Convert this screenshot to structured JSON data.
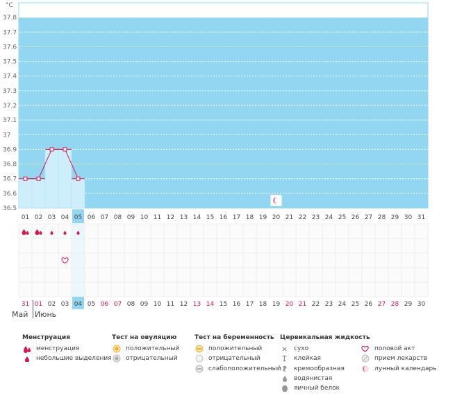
{
  "chart_data": {
    "type": "line",
    "unit": "°C",
    "y_ticks": [
      "37.8",
      "37.7",
      "37.6",
      "37.5",
      "37.4",
      "37.3",
      "37.2",
      "37.1",
      "37",
      "36.9",
      "36.8",
      "36.7",
      "36.6",
      "36.5"
    ],
    "ylim": [
      36.5,
      37.9
    ],
    "days": [
      "01",
      "02",
      "03",
      "04",
      "05",
      "06",
      "07",
      "08",
      "09",
      "10",
      "11",
      "12",
      "13",
      "14",
      "15",
      "16",
      "17",
      "18",
      "19",
      "20",
      "21",
      "22",
      "23",
      "24",
      "25",
      "26",
      "27",
      "28",
      "29",
      "30",
      "31"
    ],
    "temperatures": [
      36.7,
      36.7,
      36.9,
      36.9,
      36.7
    ],
    "selected_day_index": 4,
    "moon_day_index": 19,
    "menstruation_marks": [
      "heavy",
      "heavy",
      "light",
      "light",
      "light"
    ],
    "intercourse_day_index": 3,
    "bottom_days": [
      "31",
      "01",
      "02",
      "03",
      "04",
      "05",
      "06",
      "07",
      "08",
      "09",
      "10",
      "11",
      "12",
      "13",
      "14",
      "15",
      "16",
      "17",
      "18",
      "19",
      "20",
      "21",
      "22",
      "23",
      "24",
      "25",
      "26",
      "27",
      "28",
      "29",
      "30"
    ],
    "bottom_red_indices": [
      0,
      1,
      6,
      7,
      13,
      14,
      20,
      21,
      27,
      28
    ],
    "bottom_selected_index": 4,
    "grid": true
  },
  "months": {
    "prev": "Май",
    "current": "Июнь"
  },
  "colors": {
    "plot_bg": "#93d6f2",
    "column_fill": "#cfeefb",
    "line": "#d6164f",
    "selected": "#93d6f2",
    "red_day": "#d6164f"
  },
  "legend": {
    "menstruation": {
      "title": "Менструация",
      "items": [
        {
          "icon": "drops-icon",
          "label": "менструация"
        },
        {
          "icon": "drop-small-icon",
          "label": "небольшие выделения"
        }
      ]
    },
    "ovulation": {
      "title": "Тест на овуляцию",
      "items": [
        {
          "icon": "circle-orange-icon",
          "label": "положительный"
        },
        {
          "icon": "circle-gray-icon",
          "label": "отрицательный"
        }
      ]
    },
    "pregnancy": {
      "title": "Тест на беременность",
      "items": [
        {
          "icon": "circle-yellow-icon",
          "label": "положительный"
        },
        {
          "icon": "circle-light-icon",
          "label": "отрицательный"
        },
        {
          "icon": "circle-weak-icon",
          "label": "слабоположительный"
        }
      ]
    },
    "cervical": {
      "title": "Цервикальная жидкость",
      "items": [
        {
          "icon": "cross-icon",
          "label": "сухо"
        },
        {
          "icon": "sticky-icon",
          "label": "клейкая"
        },
        {
          "icon": "creamy-icon",
          "label": "кремообразная"
        },
        {
          "icon": "watery-icon",
          "label": "водянистая"
        },
        {
          "icon": "eggwhite-icon",
          "label": "яичный белок"
        }
      ]
    },
    "other": {
      "items": [
        {
          "icon": "heart-icon",
          "label": "половой акт"
        },
        {
          "icon": "pill-icon",
          "label": "прием лекарств"
        },
        {
          "icon": "moon-icon",
          "label": "лунный календарь"
        }
      ]
    }
  }
}
